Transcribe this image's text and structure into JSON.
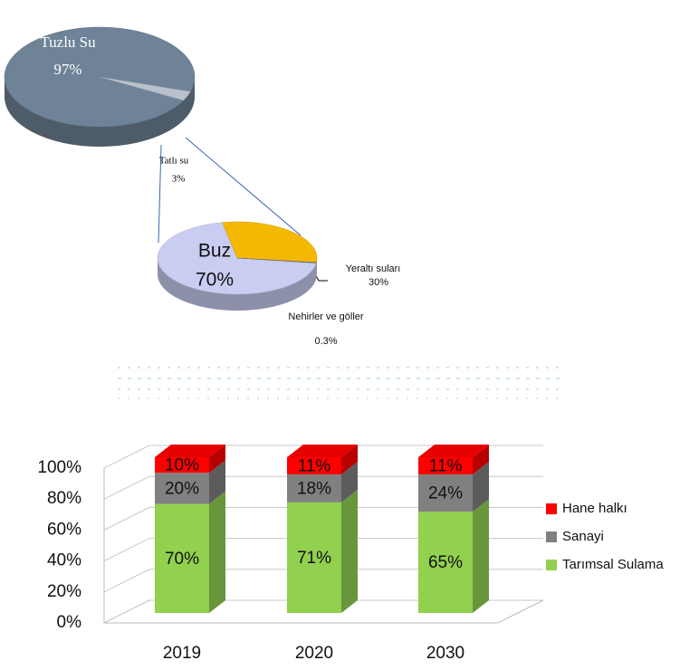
{
  "chart_data": [
    {
      "type": "pie",
      "categories": [
        "Tuzlu Su",
        "Tatlı su"
      ],
      "values": [
        97,
        3
      ],
      "value_labels": [
        "97%",
        "3%"
      ],
      "colors": [
        "#6f8398",
        "#b9c2cc"
      ]
    },
    {
      "type": "pie",
      "categories": [
        "Buz",
        "Yeraltı suları",
        "Nehirler ve göller"
      ],
      "values": [
        70,
        30,
        0.3
      ],
      "value_labels": [
        "70%",
        "30%",
        "0.3%"
      ],
      "colors": [
        "#c9cdf2",
        "#f5b800",
        "#7f7f7f"
      ]
    },
    {
      "type": "bar3d",
      "stacked": true,
      "categories": [
        "2019",
        "2020",
        "2030"
      ],
      "series": [
        {
          "name": "Tarımsal Sulama",
          "color": "#92d050",
          "values": [
            70,
            71,
            65
          ],
          "value_labels": [
            "70%",
            "71%",
            "65%"
          ]
        },
        {
          "name": "Sanayi",
          "color": "#808080",
          "values": [
            20,
            18,
            24
          ],
          "value_labels": [
            "20%",
            "18%",
            "24%"
          ]
        },
        {
          "name": "Hane halkı",
          "color": "#ff0000",
          "values": [
            10,
            11,
            11
          ],
          "value_labels": [
            "10%",
            "11%",
            "11%"
          ]
        }
      ],
      "ylim": [
        0,
        100
      ],
      "yticks": [
        {
          "value": 0,
          "label": "0%"
        },
        {
          "value": 20,
          "label": "20%"
        },
        {
          "value": 40,
          "label": "40%"
        },
        {
          "value": 60,
          "label": "60%"
        },
        {
          "value": 80,
          "label": "80%"
        },
        {
          "value": 100,
          "label": "100%"
        }
      ],
      "grid": true,
      "legend": "right"
    }
  ]
}
